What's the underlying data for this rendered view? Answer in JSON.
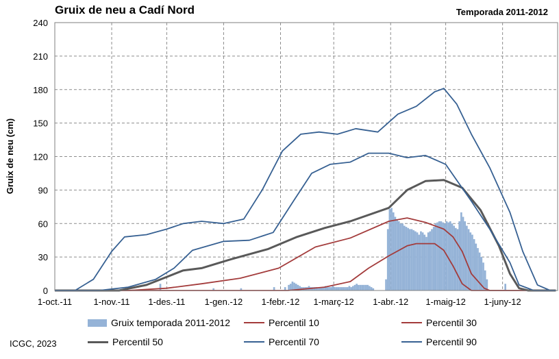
{
  "chart_data": {
    "type": "bar",
    "title": "Gruix de neu a Cadí Nord",
    "subtitle": "Temporada 2011-2012",
    "ylabel": "Gruix de neu (cm)",
    "ylim": [
      0,
      240
    ],
    "yticks": [
      0,
      30,
      60,
      90,
      120,
      150,
      180,
      210,
      240
    ],
    "grid": true,
    "legend_position": "bottom",
    "xlim": [
      "2011-10-01",
      "2012-06-30"
    ],
    "x_ticks": [
      {
        "date": "2011-10-01",
        "label": "1-oct.-11"
      },
      {
        "date": "2011-11-01",
        "label": "1-nov.-11"
      },
      {
        "date": "2011-12-01",
        "label": "1-des.-11"
      },
      {
        "date": "2012-01-01",
        "label": "1-gen.-12"
      },
      {
        "date": "2012-02-01",
        "label": "1-febr.-12"
      },
      {
        "date": "2012-03-01",
        "label": "1-març-12"
      },
      {
        "date": "2012-04-01",
        "label": "1-abr.-12"
      },
      {
        "date": "2012-05-01",
        "label": "1-maig-12"
      },
      {
        "date": "2012-06-01",
        "label": "1-juny-12"
      }
    ],
    "bars": {
      "name": "Gruix temporada 2011-2012",
      "color": "#95b3d7",
      "points": [
        [
          "2011-11-27",
          6
        ],
        [
          "2011-12-26",
          2
        ],
        [
          "2012-01-10",
          2
        ],
        [
          "2012-01-28",
          3
        ],
        [
          "2012-02-03",
          3
        ],
        [
          "2012-02-05",
          5
        ],
        [
          "2012-02-06",
          6
        ],
        [
          "2012-02-07",
          8
        ],
        [
          "2012-02-08",
          7
        ],
        [
          "2012-02-09",
          6
        ],
        [
          "2012-02-10",
          5
        ],
        [
          "2012-02-11",
          4
        ],
        [
          "2012-02-12",
          3
        ],
        [
          "2012-02-13",
          3
        ],
        [
          "2012-02-14",
          3
        ],
        [
          "2012-02-15",
          3
        ],
        [
          "2012-02-16",
          4
        ],
        [
          "2012-02-17",
          3
        ],
        [
          "2012-02-18",
          3
        ],
        [
          "2012-02-19",
          3
        ],
        [
          "2012-02-20",
          3
        ],
        [
          "2012-02-21",
          2
        ],
        [
          "2012-02-22",
          3
        ],
        [
          "2012-02-23",
          3
        ],
        [
          "2012-02-24",
          3
        ],
        [
          "2012-02-25",
          4
        ],
        [
          "2012-02-26",
          3
        ],
        [
          "2012-02-27",
          3
        ],
        [
          "2012-02-28",
          3
        ],
        [
          "2012-02-29",
          4
        ],
        [
          "2012-03-01",
          3
        ],
        [
          "2012-03-02",
          3
        ],
        [
          "2012-03-03",
          3
        ],
        [
          "2012-03-04",
          3
        ],
        [
          "2012-03-05",
          3
        ],
        [
          "2012-03-06",
          3
        ],
        [
          "2012-03-07",
          3
        ],
        [
          "2012-03-08",
          3
        ],
        [
          "2012-03-09",
          4
        ],
        [
          "2012-03-10",
          3
        ],
        [
          "2012-03-11",
          4
        ],
        [
          "2012-03-12",
          5
        ],
        [
          "2012-03-13",
          6
        ],
        [
          "2012-03-14",
          5
        ],
        [
          "2012-03-15",
          5
        ],
        [
          "2012-03-16",
          5
        ],
        [
          "2012-03-17",
          5
        ],
        [
          "2012-03-18",
          5
        ],
        [
          "2012-03-19",
          5
        ],
        [
          "2012-03-20",
          4
        ],
        [
          "2012-03-21",
          3
        ],
        [
          "2012-03-22",
          2
        ],
        [
          "2012-03-29",
          10
        ],
        [
          "2012-03-30",
          55
        ],
        [
          "2012-03-31",
          73
        ],
        [
          "2012-04-01",
          74
        ],
        [
          "2012-04-02",
          70
        ],
        [
          "2012-04-03",
          66
        ],
        [
          "2012-04-04",
          63
        ],
        [
          "2012-04-05",
          62
        ],
        [
          "2012-04-06",
          60
        ],
        [
          "2012-04-07",
          60
        ],
        [
          "2012-04-08",
          58
        ],
        [
          "2012-04-09",
          57
        ],
        [
          "2012-04-10",
          56
        ],
        [
          "2012-04-11",
          55
        ],
        [
          "2012-04-12",
          55
        ],
        [
          "2012-04-13",
          54
        ],
        [
          "2012-04-14",
          53
        ],
        [
          "2012-04-15",
          52
        ],
        [
          "2012-04-16",
          50
        ],
        [
          "2012-04-17",
          53
        ],
        [
          "2012-04-18",
          52
        ],
        [
          "2012-04-19",
          50
        ],
        [
          "2012-04-20",
          48
        ],
        [
          "2012-04-21",
          52
        ],
        [
          "2012-04-22",
          53
        ],
        [
          "2012-04-23",
          55
        ],
        [
          "2012-04-24",
          57
        ],
        [
          "2012-04-25",
          60
        ],
        [
          "2012-04-26",
          61
        ],
        [
          "2012-04-27",
          62
        ],
        [
          "2012-04-28",
          62
        ],
        [
          "2012-04-29",
          61
        ],
        [
          "2012-04-30",
          60
        ],
        [
          "2012-05-01",
          62
        ],
        [
          "2012-05-02",
          61
        ],
        [
          "2012-05-03",
          62
        ],
        [
          "2012-05-04",
          60
        ],
        [
          "2012-05-05",
          58
        ],
        [
          "2012-05-06",
          56
        ],
        [
          "2012-05-07",
          55
        ],
        [
          "2012-05-08",
          62
        ],
        [
          "2012-05-09",
          70
        ],
        [
          "2012-05-10",
          66
        ],
        [
          "2012-05-11",
          62
        ],
        [
          "2012-05-12",
          58
        ],
        [
          "2012-05-13",
          55
        ],
        [
          "2012-05-14",
          52
        ],
        [
          "2012-05-15",
          50
        ],
        [
          "2012-05-16",
          46
        ],
        [
          "2012-05-17",
          42
        ],
        [
          "2012-05-18",
          38
        ],
        [
          "2012-05-19",
          34
        ],
        [
          "2012-05-20",
          30
        ],
        [
          "2012-05-21",
          25
        ],
        [
          "2012-05-22",
          18
        ],
        [
          "2012-05-23",
          10
        ],
        [
          "2012-06-02",
          6
        ]
      ]
    },
    "series": [
      {
        "name": "Percentil 10",
        "color": "#a33b3b",
        "width": 1.8,
        "points": [
          [
            "2011-10-01",
            0
          ],
          [
            "2012-02-05",
            0
          ],
          [
            "2012-02-25",
            3
          ],
          [
            "2012-03-10",
            8
          ],
          [
            "2012-03-20",
            20
          ],
          [
            "2012-03-31",
            31
          ],
          [
            "2012-04-10",
            40
          ],
          [
            "2012-04-15",
            42
          ],
          [
            "2012-04-25",
            42
          ],
          [
            "2012-04-30",
            36
          ],
          [
            "2012-05-05",
            22
          ],
          [
            "2012-05-10",
            6
          ],
          [
            "2012-05-15",
            0
          ],
          [
            "2012-06-30",
            0
          ]
        ]
      },
      {
        "name": "Percentil 30",
        "color": "#a33b3b",
        "width": 1.8,
        "points": [
          [
            "2011-10-01",
            0
          ],
          [
            "2011-11-10",
            0
          ],
          [
            "2011-12-01",
            2
          ],
          [
            "2011-12-20",
            6
          ],
          [
            "2012-01-10",
            11
          ],
          [
            "2012-01-31",
            20
          ],
          [
            "2012-02-20",
            39
          ],
          [
            "2012-03-10",
            47
          ],
          [
            "2012-03-31",
            62
          ],
          [
            "2012-04-10",
            65
          ],
          [
            "2012-04-20",
            61
          ],
          [
            "2012-04-30",
            55
          ],
          [
            "2012-05-05",
            48
          ],
          [
            "2012-05-10",
            35
          ],
          [
            "2012-05-15",
            15
          ],
          [
            "2012-05-22",
            2
          ],
          [
            "2012-05-25",
            0
          ],
          [
            "2012-06-30",
            0
          ]
        ]
      },
      {
        "name": "Percentil 50",
        "color": "#595959",
        "width": 3,
        "points": [
          [
            "2011-10-01",
            0
          ],
          [
            "2011-11-05",
            0
          ],
          [
            "2011-11-20",
            5
          ],
          [
            "2011-12-10",
            18
          ],
          [
            "2011-12-20",
            20
          ],
          [
            "2012-01-05",
            28
          ],
          [
            "2012-01-25",
            37
          ],
          [
            "2012-02-10",
            48
          ],
          [
            "2012-02-25",
            56
          ],
          [
            "2012-03-10",
            62
          ],
          [
            "2012-03-31",
            74
          ],
          [
            "2012-04-10",
            90
          ],
          [
            "2012-04-20",
            98
          ],
          [
            "2012-04-30",
            99
          ],
          [
            "2012-05-10",
            92
          ],
          [
            "2012-05-20",
            72
          ],
          [
            "2012-05-30",
            40
          ],
          [
            "2012-06-05",
            15
          ],
          [
            "2012-06-10",
            2
          ],
          [
            "2012-06-15",
            0
          ],
          [
            "2012-06-30",
            0
          ]
        ]
      },
      {
        "name": "Percentil 70",
        "color": "#366092",
        "width": 1.8,
        "points": [
          [
            "2011-10-01",
            0
          ],
          [
            "2011-10-25",
            0
          ],
          [
            "2011-11-10",
            3
          ],
          [
            "2011-11-25",
            10
          ],
          [
            "2011-12-05",
            20
          ],
          [
            "2011-12-15",
            36
          ],
          [
            "2012-01-01",
            44
          ],
          [
            "2012-01-15",
            45
          ],
          [
            "2012-01-28",
            52
          ],
          [
            "2012-02-08",
            80
          ],
          [
            "2012-02-18",
            105
          ],
          [
            "2012-02-28",
            113
          ],
          [
            "2012-03-10",
            115
          ],
          [
            "2012-03-20",
            123
          ],
          [
            "2012-03-31",
            123
          ],
          [
            "2012-04-10",
            119
          ],
          [
            "2012-04-20",
            121
          ],
          [
            "2012-05-01",
            113
          ],
          [
            "2012-05-15",
            80
          ],
          [
            "2012-05-25",
            55
          ],
          [
            "2012-06-05",
            25
          ],
          [
            "2012-06-10",
            5
          ],
          [
            "2012-06-18",
            0
          ],
          [
            "2012-06-30",
            0
          ]
        ]
      },
      {
        "name": "Percentil 90",
        "color": "#366092",
        "width": 1.8,
        "points": [
          [
            "2011-10-01",
            0
          ],
          [
            "2011-10-12",
            0
          ],
          [
            "2011-10-22",
            10
          ],
          [
            "2011-11-01",
            35
          ],
          [
            "2011-11-08",
            48
          ],
          [
            "2011-11-20",
            50
          ],
          [
            "2011-12-01",
            55
          ],
          [
            "2011-12-10",
            60
          ],
          [
            "2011-12-20",
            62
          ],
          [
            "2012-01-01",
            60
          ],
          [
            "2012-01-12",
            64
          ],
          [
            "2012-01-22",
            90
          ],
          [
            "2012-02-02",
            125
          ],
          [
            "2012-02-12",
            140
          ],
          [
            "2012-02-22",
            142
          ],
          [
            "2012-03-03",
            140
          ],
          [
            "2012-03-13",
            145
          ],
          [
            "2012-03-25",
            142
          ],
          [
            "2012-04-05",
            158
          ],
          [
            "2012-04-15",
            165
          ],
          [
            "2012-04-25",
            178
          ],
          [
            "2012-04-30",
            181
          ],
          [
            "2012-05-07",
            167
          ],
          [
            "2012-05-15",
            140
          ],
          [
            "2012-05-25",
            110
          ],
          [
            "2012-06-05",
            70
          ],
          [
            "2012-06-12",
            35
          ],
          [
            "2012-06-20",
            5
          ],
          [
            "2012-06-27",
            0
          ],
          [
            "2012-06-30",
            0
          ]
        ]
      }
    ]
  },
  "page": {
    "title": "Gruix de neu a Cadí Nord",
    "season": "Temporada 2011-2012",
    "credit": "ICGC, 2023"
  },
  "legend": [
    {
      "label": "Gruix temporada 2011-2012",
      "type": "bar",
      "color": "#95b3d7"
    },
    {
      "label": "Percentil 10",
      "type": "line",
      "color": "#a33b3b"
    },
    {
      "label": "Percentil 30",
      "type": "line",
      "color": "#a33b3b"
    },
    {
      "label": "Percentil 50",
      "type": "line",
      "color": "#595959"
    },
    {
      "label": "Percentil 70",
      "type": "line",
      "color": "#366092"
    },
    {
      "label": "Percentil 90",
      "type": "line",
      "color": "#366092"
    }
  ]
}
